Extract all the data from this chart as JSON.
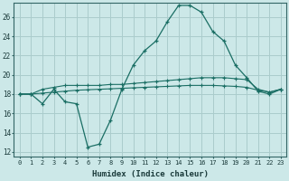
{
  "xlabel": "Humidex (Indice chaleur)",
  "bg_color": "#cce8e8",
  "grid_color": "#aacccc",
  "line_color": "#1a6e64",
  "xlim": [
    -0.5,
    23.5
  ],
  "ylim": [
    11.5,
    27.5
  ],
  "xticks": [
    0,
    1,
    2,
    3,
    4,
    5,
    6,
    7,
    8,
    9,
    10,
    11,
    12,
    13,
    14,
    15,
    16,
    17,
    18,
    19,
    20,
    21,
    22,
    23
  ],
  "yticks": [
    12,
    14,
    16,
    18,
    20,
    22,
    24,
    26
  ],
  "main_x": [
    0,
    1,
    2,
    3,
    4,
    5,
    6,
    7,
    8,
    9,
    10,
    11,
    12,
    13,
    14,
    15,
    16,
    17,
    18,
    19,
    20,
    21,
    22,
    23
  ],
  "main_y": [
    18.0,
    18.0,
    17.0,
    18.5,
    17.2,
    17.0,
    12.5,
    12.8,
    15.3,
    18.5,
    21.0,
    22.5,
    23.5,
    25.5,
    27.2,
    27.2,
    26.5,
    24.5,
    23.5,
    21.0,
    19.7,
    18.3,
    18.0,
    18.5
  ],
  "line2_x": [
    0,
    1,
    2,
    3,
    4,
    5,
    6,
    7,
    8,
    9,
    10,
    11,
    12,
    13,
    14,
    15,
    16,
    17,
    18,
    19,
    20,
    21,
    22,
    23
  ],
  "line2_y": [
    18.0,
    18.0,
    18.5,
    18.7,
    18.9,
    18.9,
    18.9,
    18.9,
    19.0,
    19.0,
    19.1,
    19.2,
    19.3,
    19.4,
    19.5,
    19.6,
    19.7,
    19.7,
    19.7,
    19.6,
    19.5,
    18.5,
    18.2,
    18.5
  ],
  "line3_x": [
    0,
    1,
    2,
    3,
    4,
    5,
    6,
    7,
    8,
    9,
    10,
    11,
    12,
    13,
    14,
    15,
    16,
    17,
    18,
    19,
    20,
    21,
    22,
    23
  ],
  "line3_y": [
    18.0,
    18.0,
    18.1,
    18.2,
    18.3,
    18.4,
    18.45,
    18.5,
    18.55,
    18.6,
    18.65,
    18.7,
    18.75,
    18.8,
    18.85,
    18.9,
    18.9,
    18.9,
    18.85,
    18.8,
    18.7,
    18.4,
    18.2,
    18.5
  ]
}
